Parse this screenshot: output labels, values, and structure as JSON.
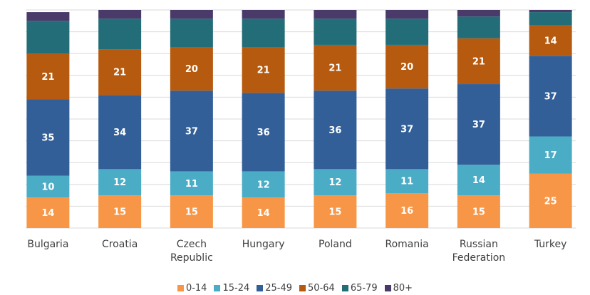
{
  "chart_data": {
    "type": "stacked_bar",
    "categories": [
      "Bulgaria",
      "Croatia",
      "Czech Republic",
      "Hungary",
      "Poland",
      "Romania",
      "Russian Federation",
      "Turkey"
    ],
    "series": [
      {
        "name": "0-14",
        "color": "#f79646",
        "labels": true,
        "values": [
          14,
          15,
          15,
          14,
          15,
          16,
          15,
          25
        ]
      },
      {
        "name": "15-24",
        "color": "#4bacc6",
        "labels": true,
        "values": [
          10,
          12,
          11,
          12,
          12,
          11,
          14,
          17
        ]
      },
      {
        "name": "25-49",
        "color": "#325f98",
        "labels": true,
        "values": [
          35,
          34,
          37,
          36,
          36,
          37,
          37,
          37
        ]
      },
      {
        "name": "50-64",
        "color": "#b65a0f",
        "labels": true,
        "values": [
          21,
          21,
          20,
          21,
          21,
          20,
          21,
          14
        ]
      },
      {
        "name": "65-79",
        "color": "#236d78",
        "labels": false,
        "values": [
          15,
          14,
          13,
          13,
          12,
          12,
          10,
          6
        ]
      },
      {
        "name": "80+",
        "color": "#4a3a6a",
        "labels": false,
        "values": [
          4,
          4,
          4,
          4,
          4,
          4,
          3,
          1
        ]
      }
    ],
    "ylim": [
      0,
      100
    ],
    "yticks": [
      0,
      10,
      20,
      30,
      40,
      50,
      60,
      70,
      80,
      90,
      100
    ],
    "grid": true
  }
}
